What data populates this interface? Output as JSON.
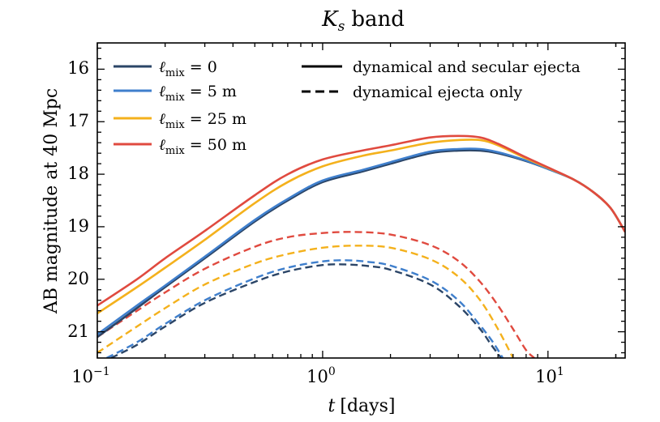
{
  "chart_data": {
    "type": "line",
    "title": "K_s band",
    "title_parts": {
      "symbol": "K",
      "subscript": "s",
      "rest": "band"
    },
    "xlabel": "t [days]",
    "xlabel_parts": {
      "var": "t",
      "rest": "[days]"
    },
    "ylabel": "AB magnitude at 40 Mpc",
    "xscale": "log",
    "xlim": [
      0.1,
      22
    ],
    "ylim": [
      21.5,
      15.5
    ],
    "y_inverted": true,
    "xticks": [
      {
        "value": 0.1,
        "base": "10",
        "exp": "−1"
      },
      {
        "value": 1,
        "base": "10",
        "exp": "0"
      },
      {
        "value": 10,
        "base": "10",
        "exp": "1"
      }
    ],
    "yticks": [
      16,
      17,
      18,
      19,
      20,
      21
    ],
    "legend_models": [
      {
        "name": "ℓ_mix = 0",
        "sub": "mix",
        "value": "0",
        "color": "#2b4567"
      },
      {
        "name": "ℓ_mix = 5 m",
        "sub": "mix",
        "value": "5 m",
        "color": "#3f7fcc"
      },
      {
        "name": "ℓ_mix = 25 m",
        "sub": "mix",
        "value": "25 m",
        "color": "#f4b11c"
      },
      {
        "name": "ℓ_mix = 50 m",
        "sub": "mix",
        "value": "50 m",
        "color": "#e04a3f"
      }
    ],
    "legend_styles": [
      {
        "label": "dynamical and secular ejecta",
        "dash": "solid"
      },
      {
        "label": "dynamical ejecta only",
        "dash": "dashed"
      }
    ],
    "series": [
      {
        "model": 0,
        "style": "solid",
        "x": [
          0.1,
          0.15,
          0.2,
          0.3,
          0.5,
          0.7,
          1.0,
          1.5,
          2.0,
          3.0,
          4.0,
          5.0,
          6.0,
          8.0,
          10.0,
          13.0,
          16.0,
          19.0,
          22.0
        ],
        "y": [
          21.1,
          20.55,
          20.15,
          19.6,
          18.9,
          18.5,
          18.15,
          17.95,
          17.8,
          17.6,
          17.55,
          17.55,
          17.6,
          17.75,
          17.9,
          18.1,
          18.35,
          18.65,
          19.1
        ]
      },
      {
        "model": 1,
        "style": "solid",
        "x": [
          0.1,
          0.15,
          0.2,
          0.3,
          0.5,
          0.7,
          1.0,
          1.5,
          2.0,
          3.0,
          4.0,
          5.0,
          6.0,
          8.0,
          10.0,
          13.0,
          16.0,
          19.0,
          22.0
        ],
        "y": [
          21.05,
          20.5,
          20.12,
          19.57,
          18.87,
          18.47,
          18.12,
          17.92,
          17.77,
          17.57,
          17.52,
          17.52,
          17.58,
          17.74,
          17.9,
          18.1,
          18.35,
          18.65,
          19.1
        ]
      },
      {
        "model": 2,
        "style": "solid",
        "x": [
          0.1,
          0.15,
          0.2,
          0.3,
          0.5,
          0.7,
          1.0,
          1.5,
          2.0,
          3.0,
          4.0,
          5.0,
          6.0,
          8.0,
          10.0,
          13.0,
          16.0,
          19.0,
          22.0
        ],
        "y": [
          20.65,
          20.15,
          19.78,
          19.25,
          18.55,
          18.15,
          17.85,
          17.65,
          17.55,
          17.4,
          17.35,
          17.35,
          17.45,
          17.7,
          17.88,
          18.1,
          18.35,
          18.65,
          19.1
        ]
      },
      {
        "model": 3,
        "style": "solid",
        "x": [
          0.1,
          0.15,
          0.2,
          0.3,
          0.5,
          0.7,
          1.0,
          1.5,
          2.0,
          3.0,
          4.0,
          5.0,
          6.0,
          8.0,
          10.0,
          13.0,
          16.0,
          19.0,
          22.0
        ],
        "y": [
          20.5,
          20.0,
          19.6,
          19.08,
          18.4,
          18.0,
          17.72,
          17.55,
          17.45,
          17.3,
          17.27,
          17.3,
          17.42,
          17.68,
          17.87,
          18.1,
          18.35,
          18.65,
          19.1
        ]
      },
      {
        "model": 0,
        "style": "dashed",
        "x": [
          0.115,
          0.15,
          0.2,
          0.3,
          0.5,
          0.7,
          1.0,
          1.3,
          1.6,
          2.0,
          3.0,
          4.0,
          5.0,
          5.6,
          6.2
        ],
        "y": [
          21.5,
          21.25,
          20.9,
          20.45,
          20.05,
          19.85,
          19.73,
          19.72,
          19.75,
          19.82,
          20.1,
          20.5,
          20.95,
          21.25,
          21.5
        ]
      },
      {
        "model": 1,
        "style": "dashed",
        "x": [
          0.11,
          0.15,
          0.2,
          0.3,
          0.5,
          0.7,
          1.0,
          1.3,
          1.6,
          2.0,
          3.0,
          4.0,
          5.0,
          5.7,
          6.3
        ],
        "y": [
          21.5,
          21.2,
          20.85,
          20.4,
          19.98,
          19.78,
          19.66,
          19.64,
          19.67,
          19.74,
          20.02,
          20.4,
          20.88,
          21.2,
          21.5
        ]
      },
      {
        "model": 2,
        "style": "dashed",
        "x": [
          0.1,
          0.15,
          0.2,
          0.3,
          0.5,
          0.7,
          1.0,
          1.4,
          2.0,
          3.0,
          4.0,
          5.0,
          6.0,
          7.0
        ],
        "y": [
          21.4,
          20.9,
          20.55,
          20.1,
          19.7,
          19.52,
          19.4,
          19.36,
          19.4,
          19.62,
          19.95,
          20.4,
          20.95,
          21.5
        ]
      },
      {
        "model": 3,
        "style": "dashed",
        "x": [
          0.1,
          0.15,
          0.2,
          0.3,
          0.5,
          0.7,
          1.0,
          1.4,
          2.0,
          3.0,
          4.0,
          5.0,
          6.0,
          7.0,
          8.0,
          8.7
        ],
        "y": [
          21.1,
          20.6,
          20.25,
          19.8,
          19.38,
          19.2,
          19.12,
          19.1,
          19.15,
          19.35,
          19.65,
          20.05,
          20.5,
          20.95,
          21.35,
          21.5
        ]
      }
    ]
  }
}
